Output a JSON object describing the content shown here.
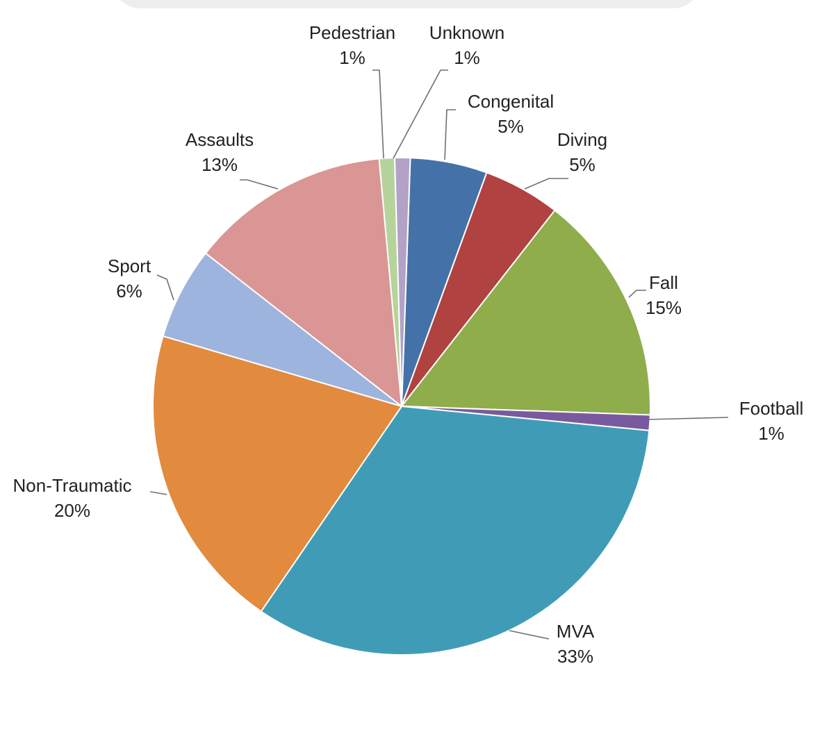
{
  "chart_data": {
    "type": "pie",
    "title": "",
    "slices": [
      {
        "label": "Congenital",
        "value": 5,
        "value_label": "5%",
        "color": "#4472a8"
      },
      {
        "label": "Diving",
        "value": 5,
        "value_label": "5%",
        "color": "#b04240"
      },
      {
        "label": "Fall",
        "value": 15,
        "value_label": "15%",
        "color": "#8fad4a"
      },
      {
        "label": "Football",
        "value": 1,
        "value_label": "1%",
        "color": "#7a5a9e"
      },
      {
        "label": "MVA",
        "value": 33,
        "value_label": "33%",
        "color": "#409cb6"
      },
      {
        "label": "Non-Traumatic",
        "value": 20,
        "value_label": "20%",
        "color": "#e28a3e"
      },
      {
        "label": "Sport",
        "value": 6,
        "value_label": "6%",
        "color": "#9db4de"
      },
      {
        "label": "Assaults",
        "value": 13,
        "value_label": "13%",
        "color": "#d99694"
      },
      {
        "label": "Pedestrian",
        "value": 1,
        "value_label": "1%",
        "color": "#b6d39b"
      },
      {
        "label": "Unknown",
        "value": 1,
        "value_label": "1%",
        "color": "#b3a2c7"
      }
    ]
  }
}
